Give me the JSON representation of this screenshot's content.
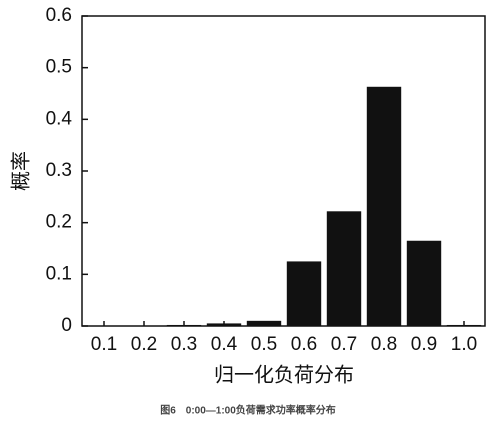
{
  "chart_data": {
    "type": "bar",
    "caption": "图6　0:00—1:00负荷需求功率概率分布",
    "x_label": "归一化负荷分布",
    "y_label": "概率",
    "categories": [
      "0.1",
      "0.2",
      "0.3",
      "0.4",
      "0.5",
      "0.6",
      "0.7",
      "0.8",
      "0.9",
      "1.0"
    ],
    "values": [
      0,
      0,
      0.002,
      0.005,
      0.01,
      0.125,
      0.222,
      0.463,
      0.165,
      0.002
    ],
    "color": "#111111",
    "ylim": [
      0,
      0.6
    ],
    "yticks": [
      0,
      0.1,
      0.2,
      0.3,
      0.4,
      0.5,
      0.6
    ],
    "grid": false
  }
}
